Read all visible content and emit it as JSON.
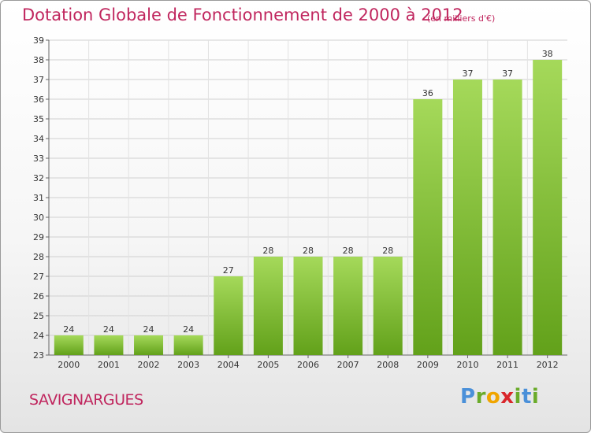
{
  "header": {
    "title": "Dotation Globale de Fonctionnement de 2000 à 2012",
    "unit": "(en milliers d'€)"
  },
  "footer": {
    "city": "SAVIGNARGUES",
    "logo": [
      "P",
      "r",
      "o",
      "x",
      "i",
      "t",
      "i"
    ]
  },
  "colors": {
    "title": "#c0265e",
    "bar_light": "#a5d95a",
    "bar_dark": "#62a11a",
    "logo": [
      "#4a90d9",
      "#6aab2a",
      "#f0a500",
      "#d9262b",
      "#6aab2a",
      "#4a90d9",
      "#6aab2a"
    ]
  },
  "chart_data": {
    "type": "bar",
    "categories": [
      "2000",
      "2001",
      "2002",
      "2003",
      "2004",
      "2005",
      "2006",
      "2007",
      "2008",
      "2009",
      "2010",
      "2011",
      "2012"
    ],
    "values": [
      24,
      24,
      24,
      24,
      27,
      28,
      28,
      28,
      28,
      36,
      37,
      37,
      38
    ],
    "title": "Dotation Globale de Fonctionnement de 2000 à 2012",
    "ylim": [
      23,
      39
    ],
    "yticks": [
      23,
      24,
      25,
      26,
      27,
      28,
      29,
      30,
      31,
      32,
      33,
      34,
      35,
      36,
      37,
      38,
      39
    ],
    "grid": true,
    "data_labels": true
  }
}
